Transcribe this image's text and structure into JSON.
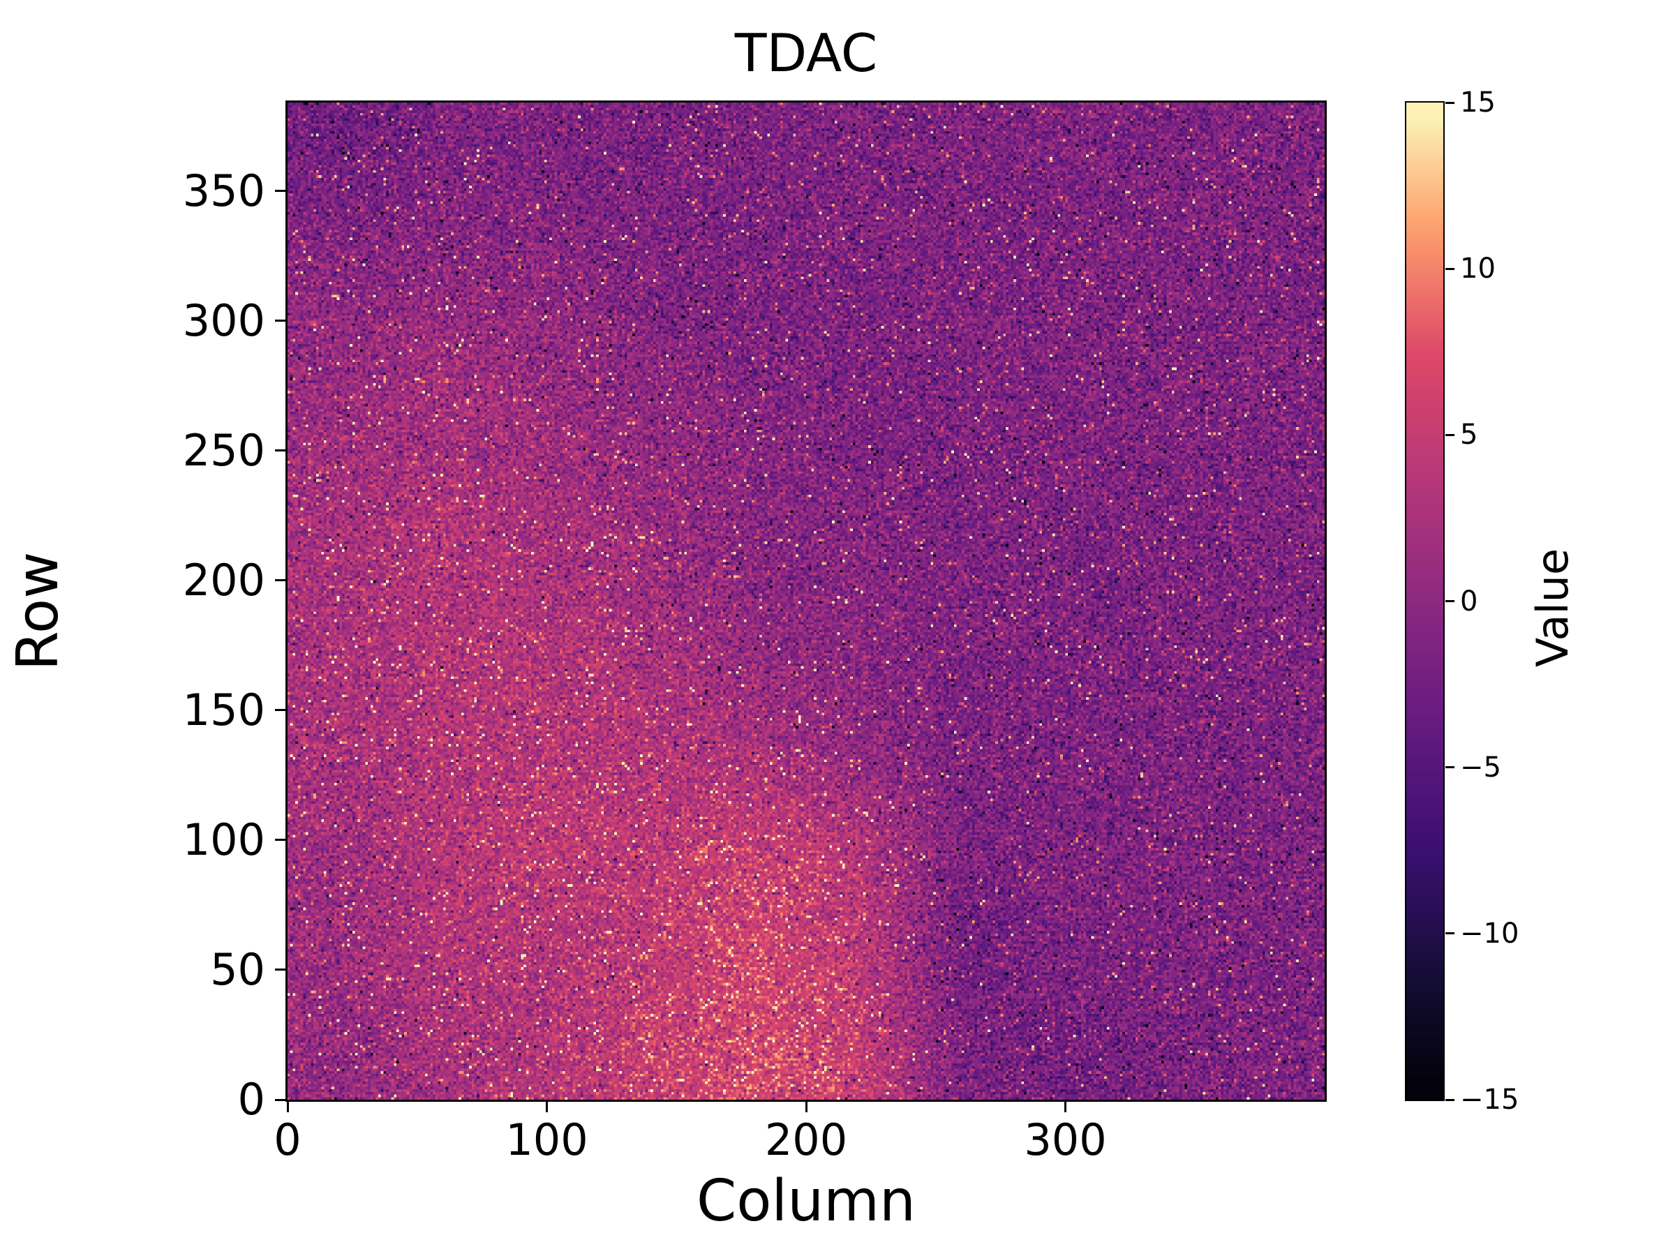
{
  "chart_data": {
    "type": "heatmap",
    "title": "TDAC",
    "xlabel": "Column",
    "ylabel": "Row",
    "x_range": [
      0,
      400
    ],
    "y_range": [
      0,
      384
    ],
    "xticks": [
      0,
      100,
      200,
      300
    ],
    "yticks": [
      0,
      50,
      100,
      150,
      200,
      250,
      300,
      350
    ],
    "colorbar": {
      "label": "Value",
      "ticks": [
        15,
        10,
        5,
        0,
        -5,
        -10,
        -15
      ],
      "vmin": -15,
      "vmax": 15,
      "levels": 30
    },
    "colormap": {
      "name": "magma",
      "stops": [
        {
          "pos": 0.0,
          "color": "#000004"
        },
        {
          "pos": 0.125,
          "color": "#140e36"
        },
        {
          "pos": 0.25,
          "color": "#3b0f70"
        },
        {
          "pos": 0.375,
          "color": "#641a80"
        },
        {
          "pos": 0.5,
          "color": "#8c2981"
        },
        {
          "pos": 0.625,
          "color": "#b73779"
        },
        {
          "pos": 0.75,
          "color": "#de4968"
        },
        {
          "pos": 0.875,
          "color": "#fe9f6d"
        },
        {
          "pos": 1.0,
          "color": "#fcfdbf"
        }
      ]
    },
    "grid_note": "coarse 10x10 grid of approximate mean pixel values; rows ordered from Row=0 (bottom) to Row=384 (top), columns from Column=0 (left) to Column=400 (right)",
    "mean_grid": [
      [
        0,
        2,
        3,
        5,
        6,
        5,
        -2,
        -3,
        -2,
        -2
      ],
      [
        1,
        3,
        3,
        4,
        6,
        4,
        -3,
        -2,
        -2,
        -2
      ],
      [
        1,
        3,
        4,
        4,
        5,
        3,
        -2,
        -2,
        -2,
        -2
      ],
      [
        2,
        3,
        3,
        3,
        2,
        0,
        -2,
        -2,
        -2,
        -2
      ],
      [
        2,
        3,
        3,
        2,
        0,
        -1,
        -2,
        -2,
        -2,
        -2
      ],
      [
        2,
        3,
        2,
        1,
        -1,
        -1,
        -2,
        -2,
        -2,
        -2
      ],
      [
        1,
        2,
        1,
        0,
        -1,
        -2,
        -2,
        -2,
        -2,
        -2
      ],
      [
        0,
        1,
        0,
        -1,
        -2,
        -2,
        -2,
        -2,
        -2,
        -2
      ],
      [
        -1,
        -1,
        -1,
        -2,
        -2,
        -2,
        -2,
        -2,
        -2,
        -2
      ],
      [
        -3,
        -2,
        -2,
        -2,
        -2,
        -2,
        -2,
        -2,
        -2,
        -2
      ]
    ],
    "noise_sd": 2.6,
    "speckle_bright_frac": 0.03,
    "speckle_dark_frac": 0.015,
    "seed": 42
  }
}
